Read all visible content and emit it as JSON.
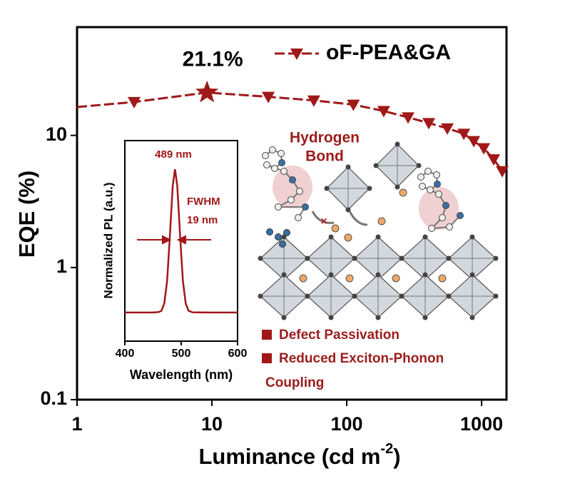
{
  "chart_data": [
    {
      "type": "line",
      "x_log": true,
      "y_log": true,
      "xlabel": {
        "text": "Luminance (cd m",
        "sup": "-2",
        "end": ")"
      },
      "ylabel": "EQE (%)",
      "xlim": [
        1,
        1530
      ],
      "ylim": [
        0.1,
        66
      ],
      "xticks": [
        1,
        10,
        100,
        1000
      ],
      "yticks": [
        0.1,
        1,
        10
      ],
      "legend": "upper right",
      "series": [
        {
          "name": "oF-PEA&GA",
          "color": "#a01818",
          "x": [
            1,
            2.65,
            9.2,
            26.2,
            57,
            112,
            188,
            285,
            406,
            557,
            738,
            875,
            1037,
            1230,
            1423
          ],
          "values": [
            16.4,
            17.9,
            21.1,
            19.6,
            18.4,
            17.1,
            15.3,
            13.7,
            12.4,
            11.3,
            10.3,
            9.06,
            8.0,
            6.6,
            5.37
          ],
          "markers": [
            "none",
            "triangle-down",
            "star",
            "triangle-down",
            "triangle-down",
            "triangle-down",
            "triangle-down",
            "triangle-down",
            "triangle-down",
            "triangle-down",
            "triangle-down",
            "triangle-down",
            "triangle-down",
            "triangle-down",
            "triangle-down"
          ],
          "value_labels": [
            null,
            null,
            "21.1%",
            null,
            null,
            null,
            null,
            null,
            null,
            null,
            null,
            null,
            null,
            null,
            null
          ]
        }
      ]
    },
    {
      "type": "line",
      "xlabel": "Wavelength (nm)",
      "ylabel": "Normalized PL (a.u.)",
      "xlim": [
        400,
        600
      ],
      "ylim": [
        -0.2,
        1.2
      ],
      "xticks": [
        400,
        500,
        600
      ],
      "annotations": [
        "489 nm",
        "FWHM",
        "19 nm"
      ],
      "series": [
        {
          "color": "#a01818",
          "x": [
            400,
            450,
            460,
            465,
            470,
            475,
            480,
            485,
            489,
            493,
            498,
            503,
            508,
            513,
            520,
            550,
            600
          ],
          "values": [
            0,
            0,
            0.003,
            0.012,
            0.063,
            0.22,
            0.54,
            0.885,
            1,
            0.885,
            0.54,
            0.22,
            0.063,
            0.012,
            0.001,
            0,
            0
          ]
        }
      ]
    }
  ],
  "diagram": {
    "label": [
      "Hydrogen",
      "Bond"
    ],
    "bullets": [
      "Defect Passivation",
      "Reduced Exciton-Phonon",
      "Coupling"
    ]
  }
}
